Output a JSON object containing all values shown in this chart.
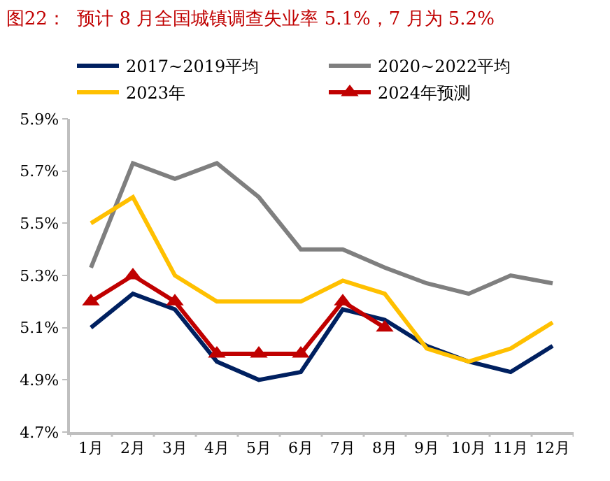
{
  "chart_data": {
    "type": "line",
    "title": "图22：  预计 8 月全国城镇调查失业率 5.1%，7 月为 5.2%",
    "categories": [
      "1月",
      "2月",
      "3月",
      "4月",
      "5月",
      "6月",
      "7月",
      "8月",
      "9月",
      "10月",
      "11月",
      "12月"
    ],
    "series": [
      {
        "name": "2017~2019平均",
        "color": "#002060",
        "values": [
          5.1,
          5.23,
          5.17,
          4.97,
          4.9,
          4.93,
          5.17,
          5.13,
          5.03,
          4.97,
          4.93,
          5.03
        ]
      },
      {
        "name": "2020~2022平均",
        "color": "#7f7f7f",
        "values": [
          5.33,
          5.73,
          5.67,
          5.73,
          5.6,
          5.4,
          5.4,
          5.33,
          5.27,
          5.23,
          5.3,
          5.27
        ]
      },
      {
        "name": "2023年",
        "color": "#ffc000",
        "values": [
          5.5,
          5.6,
          5.3,
          5.2,
          5.2,
          5.2,
          5.28,
          5.23,
          5.02,
          4.97,
          5.02,
          5.12
        ]
      },
      {
        "name": "2024年预测",
        "color": "#c00000",
        "marker": "triangle",
        "values": [
          5.2,
          5.3,
          5.2,
          5.0,
          5.0,
          5.0,
          5.2,
          5.1,
          null,
          null,
          null,
          null
        ]
      }
    ],
    "ylim": [
      4.7,
      5.9
    ],
    "yticks": [
      {
        "value": 4.7,
        "label": "4.7%"
      },
      {
        "value": 4.9,
        "label": "4.9%"
      },
      {
        "value": 5.1,
        "label": "5.1%"
      },
      {
        "value": 5.3,
        "label": "5.3%"
      },
      {
        "value": 5.5,
        "label": "5.5%"
      },
      {
        "value": 5.7,
        "label": "5.7%"
      },
      {
        "value": 5.9,
        "label": "5.9%"
      }
    ],
    "legend": "top",
    "line_style": "solid"
  }
}
